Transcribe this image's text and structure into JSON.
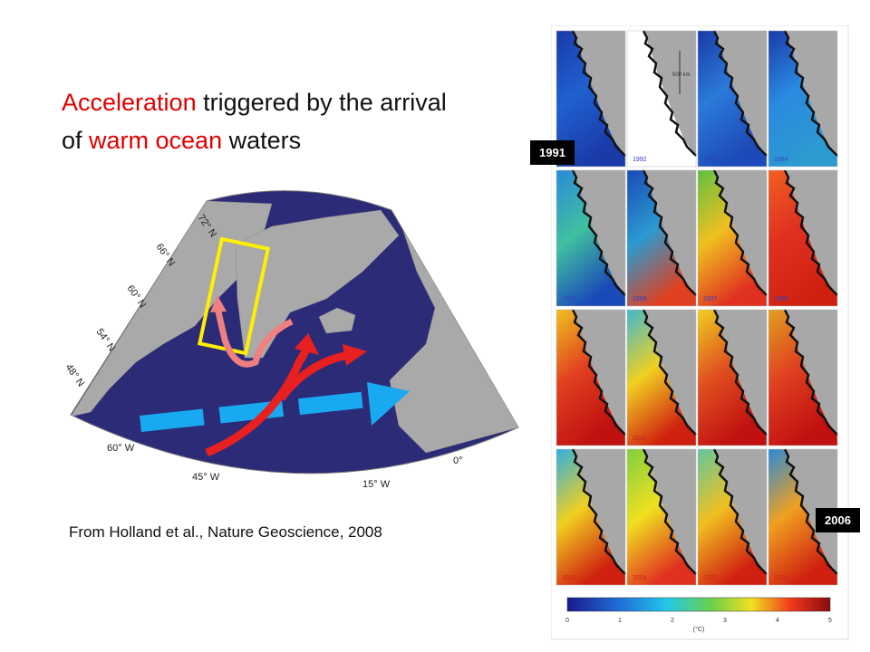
{
  "title": {
    "line1": [
      "Acceleration",
      " triggered by the arrival"
    ],
    "line2": [
      "of ",
      "warm ocean",
      " waters"
    ],
    "highlight_color": "#e00000"
  },
  "citation": "From Holland et al., Nature Geoscience, 2008",
  "map": {
    "latitudes": [
      "72° N",
      "66° N",
      "60° N",
      "54° N",
      "48° N"
    ],
    "longitudes": [
      "60° W",
      "45° W",
      "15° W",
      "0°"
    ]
  },
  "panels": {
    "start_label": "1991",
    "end_label": "2006",
    "years": [
      "1992",
      "1993",
      "1994",
      "1995",
      "1996",
      "1997",
      "1998",
      "1999",
      "2000",
      "2001",
      "2002",
      "2003",
      "2004",
      "2005",
      "2006"
    ],
    "scale_label": "500 km",
    "colorbar": {
      "ticks": [
        "0",
        "1",
        "2",
        "3",
        "4",
        "5"
      ],
      "unit": "(°C)"
    }
  }
}
